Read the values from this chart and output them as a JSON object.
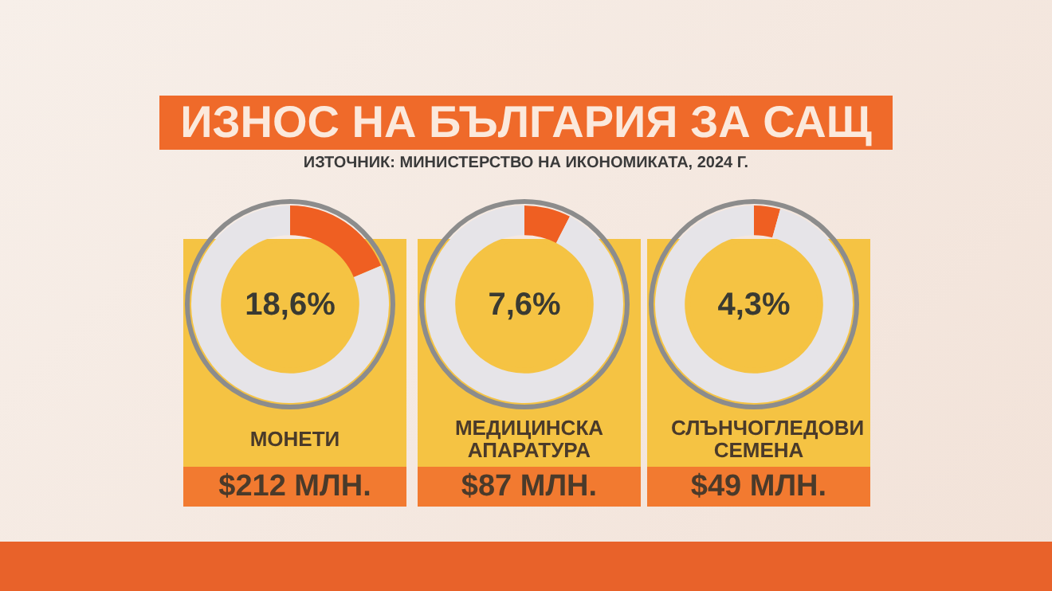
{
  "chart_data": [
    {
      "type": "other",
      "title": "ИЗНОС НА БЪЛГАРИЯ ЗА САЩ",
      "subtitle": "ИЗТОЧНИК: МИНИСТЕРСТВО НА ИКОНОМИКАТА, 2024 Г."
    },
    {
      "type": "donut",
      "title": "МОНЕТИ",
      "categories": [
        null,
        null
      ],
      "values": [
        18.6,
        81.4
      ],
      "colors": [
        "#ef5f22",
        "#e6e4e8"
      ],
      "annotations": [
        "18,6%",
        "$212 МЛН."
      ]
    },
    {
      "type": "donut",
      "title": "МЕДИЦИНСКА АПАРАТУРА",
      "categories": [
        null,
        null
      ],
      "values": [
        7.6,
        92.4
      ],
      "colors": [
        "#ef5f22",
        "#e6e4e8"
      ],
      "annotations": [
        "7,6%",
        "$87 МЛН."
      ]
    },
    {
      "type": "donut",
      "title": "СЛЪНЧОГЛЕДОВИ СЕМЕНА",
      "categories": [
        null,
        null
      ],
      "values": [
        4.3,
        95.7
      ],
      "colors": [
        "#ef5f22",
        "#e6e4e8"
      ],
      "annotations": [
        "4,3%",
        "$49 МЛН."
      ]
    }
  ]
}
